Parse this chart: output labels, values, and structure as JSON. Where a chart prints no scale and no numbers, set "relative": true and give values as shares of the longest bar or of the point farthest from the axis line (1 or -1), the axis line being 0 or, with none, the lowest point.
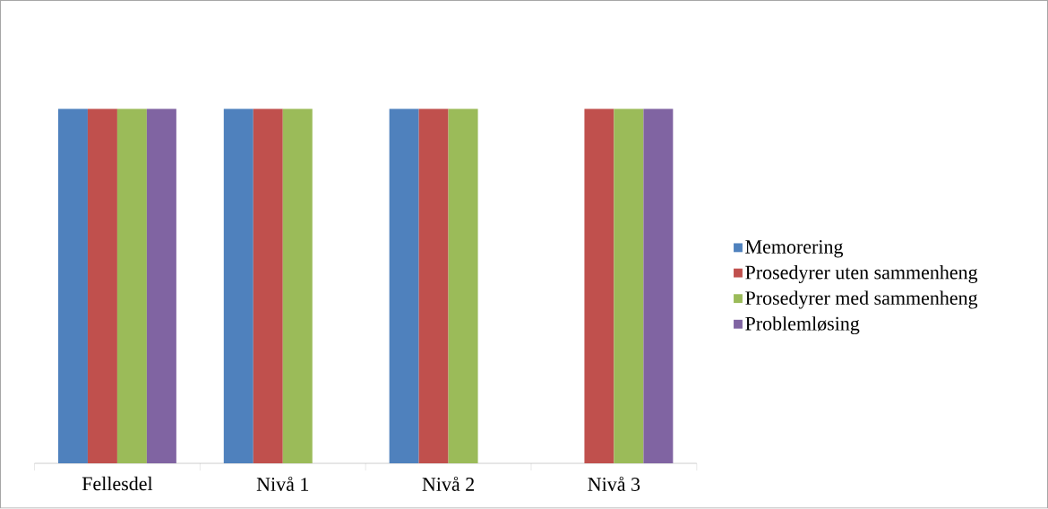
{
  "chart_data": {
    "type": "bar",
    "relative": true,
    "legend": "right",
    "categories": [
      "Fellesdel",
      "Nivå 1",
      "Nivå 2",
      "Nivå 3"
    ],
    "series": [
      {
        "name": "Memorering",
        "color": "#4f81bd",
        "values": [
          1,
          1,
          1,
          null
        ]
      },
      {
        "name": "Prosedyrer uten sammenheng",
        "color": "#c0504d",
        "values": [
          1,
          1,
          1,
          1
        ]
      },
      {
        "name": "Prosedyrer med sammenheng",
        "color": "#9bbb59",
        "values": [
          1,
          1,
          1,
          1
        ]
      },
      {
        "name": "Problemløsing",
        "color": "#8064a2",
        "values": [
          1,
          null,
          null,
          1
        ]
      }
    ]
  }
}
